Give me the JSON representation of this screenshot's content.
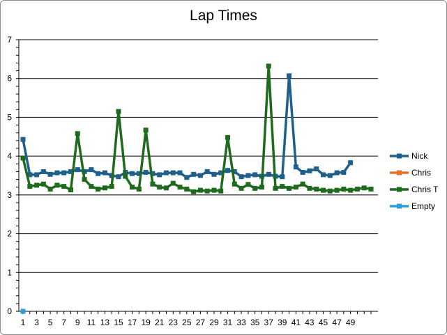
{
  "chart_data": {
    "type": "line",
    "title": "Lap Times",
    "xlabel": "",
    "ylabel": "",
    "ylim": [
      0,
      7
    ],
    "yticks": [
      0,
      1,
      2,
      3,
      4,
      5,
      6,
      7
    ],
    "xlim": [
      1,
      52
    ],
    "xtick_labels": [
      "1",
      "3",
      "5",
      "7",
      "9",
      "11",
      "13",
      "15",
      "17",
      "19",
      "21",
      "23",
      "25",
      "27",
      "29",
      "31",
      "33",
      "35",
      "37",
      "39",
      "41",
      "43",
      "45",
      "47",
      "49"
    ],
    "grid": "horizontal",
    "legend_position": "right",
    "series": [
      {
        "name": "Nick",
        "color": "#1f5f8b",
        "values": [
          4.43,
          3.52,
          3.52,
          3.6,
          3.53,
          3.57,
          3.57,
          3.6,
          3.65,
          3.6,
          3.65,
          3.55,
          3.57,
          3.5,
          3.47,
          3.58,
          3.55,
          3.55,
          3.58,
          3.55,
          3.52,
          3.57,
          3.57,
          3.57,
          3.45,
          3.53,
          3.5,
          3.6,
          3.53,
          3.57,
          3.63,
          3.6,
          3.47,
          3.5,
          3.52,
          3.48,
          3.53,
          3.48,
          3.47,
          6.07,
          3.72,
          3.58,
          3.62,
          3.67,
          3.52,
          3.5,
          3.57,
          3.58,
          3.83
        ]
      },
      {
        "name": "Chris",
        "color": "#e8702a",
        "values": []
      },
      {
        "name": "Chris T",
        "color": "#1e6b1e",
        "values": [
          3.95,
          3.22,
          3.25,
          3.28,
          3.15,
          3.25,
          3.22,
          3.13,
          4.58,
          3.4,
          3.22,
          3.15,
          3.18,
          3.22,
          5.15,
          3.48,
          3.2,
          3.15,
          4.67,
          3.28,
          3.2,
          3.18,
          3.3,
          3.2,
          3.15,
          3.08,
          3.12,
          3.1,
          3.12,
          3.1,
          4.48,
          3.28,
          3.17,
          3.27,
          3.17,
          3.2,
          6.32,
          3.17,
          3.22,
          3.17,
          3.2,
          3.28,
          3.17,
          3.15,
          3.12,
          3.1,
          3.12,
          3.15,
          3.12,
          3.15,
          3.18,
          3.15
        ]
      },
      {
        "name": "Empty",
        "color": "#2e9bd6",
        "values": [
          0
        ]
      }
    ]
  }
}
